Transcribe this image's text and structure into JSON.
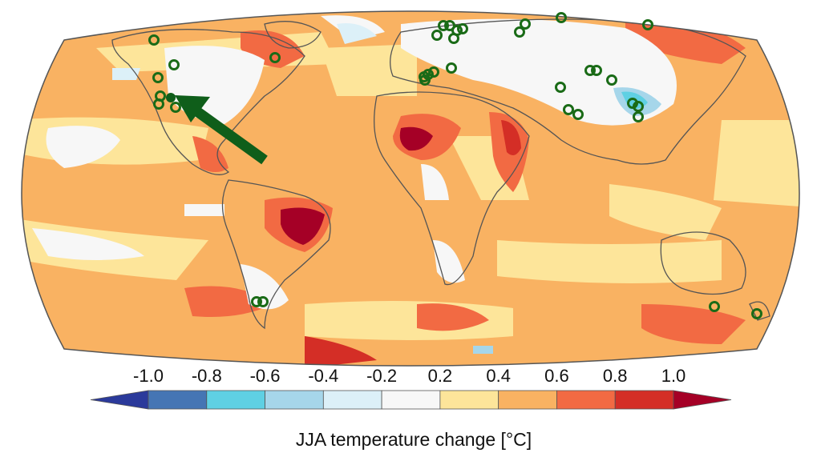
{
  "colorbar": {
    "title": "JJA temperature change [°C]",
    "ticks": [
      "-1.0",
      "-0.8",
      "-0.6",
      "-0.4",
      "-0.2",
      "0.2",
      "0.4",
      "0.6",
      "0.8",
      "1.0"
    ],
    "bins": [
      {
        "range": "< -1.0",
        "color": "#2b3a9b"
      },
      {
        "range": "-1.0 to -0.8",
        "color": "#4575b4"
      },
      {
        "range": "-0.8 to -0.6",
        "color": "#5fd0e3"
      },
      {
        "range": "-0.6 to -0.4",
        "color": "#a6d6ea"
      },
      {
        "range": "-0.4 to -0.2",
        "color": "#dcf0f8"
      },
      {
        "range": "-0.2 to 0.2",
        "color": "#f7f7f7"
      },
      {
        "range": "0.2 to 0.4",
        "color": "#fde59a"
      },
      {
        "range": "0.4 to 0.6",
        "color": "#f9b262"
      },
      {
        "range": "0.6 to 0.8",
        "color": "#f26a43"
      },
      {
        "range": "0.8 to 1.0",
        "color": "#d42e26"
      },
      {
        "range": "> 1.0",
        "color": "#a50026"
      }
    ]
  },
  "map": {
    "projection": "robinson",
    "highlighted_site_color": "#0f5e1a",
    "site_marker_color": "#1a6b17",
    "coastline_color": "#555555"
  }
}
